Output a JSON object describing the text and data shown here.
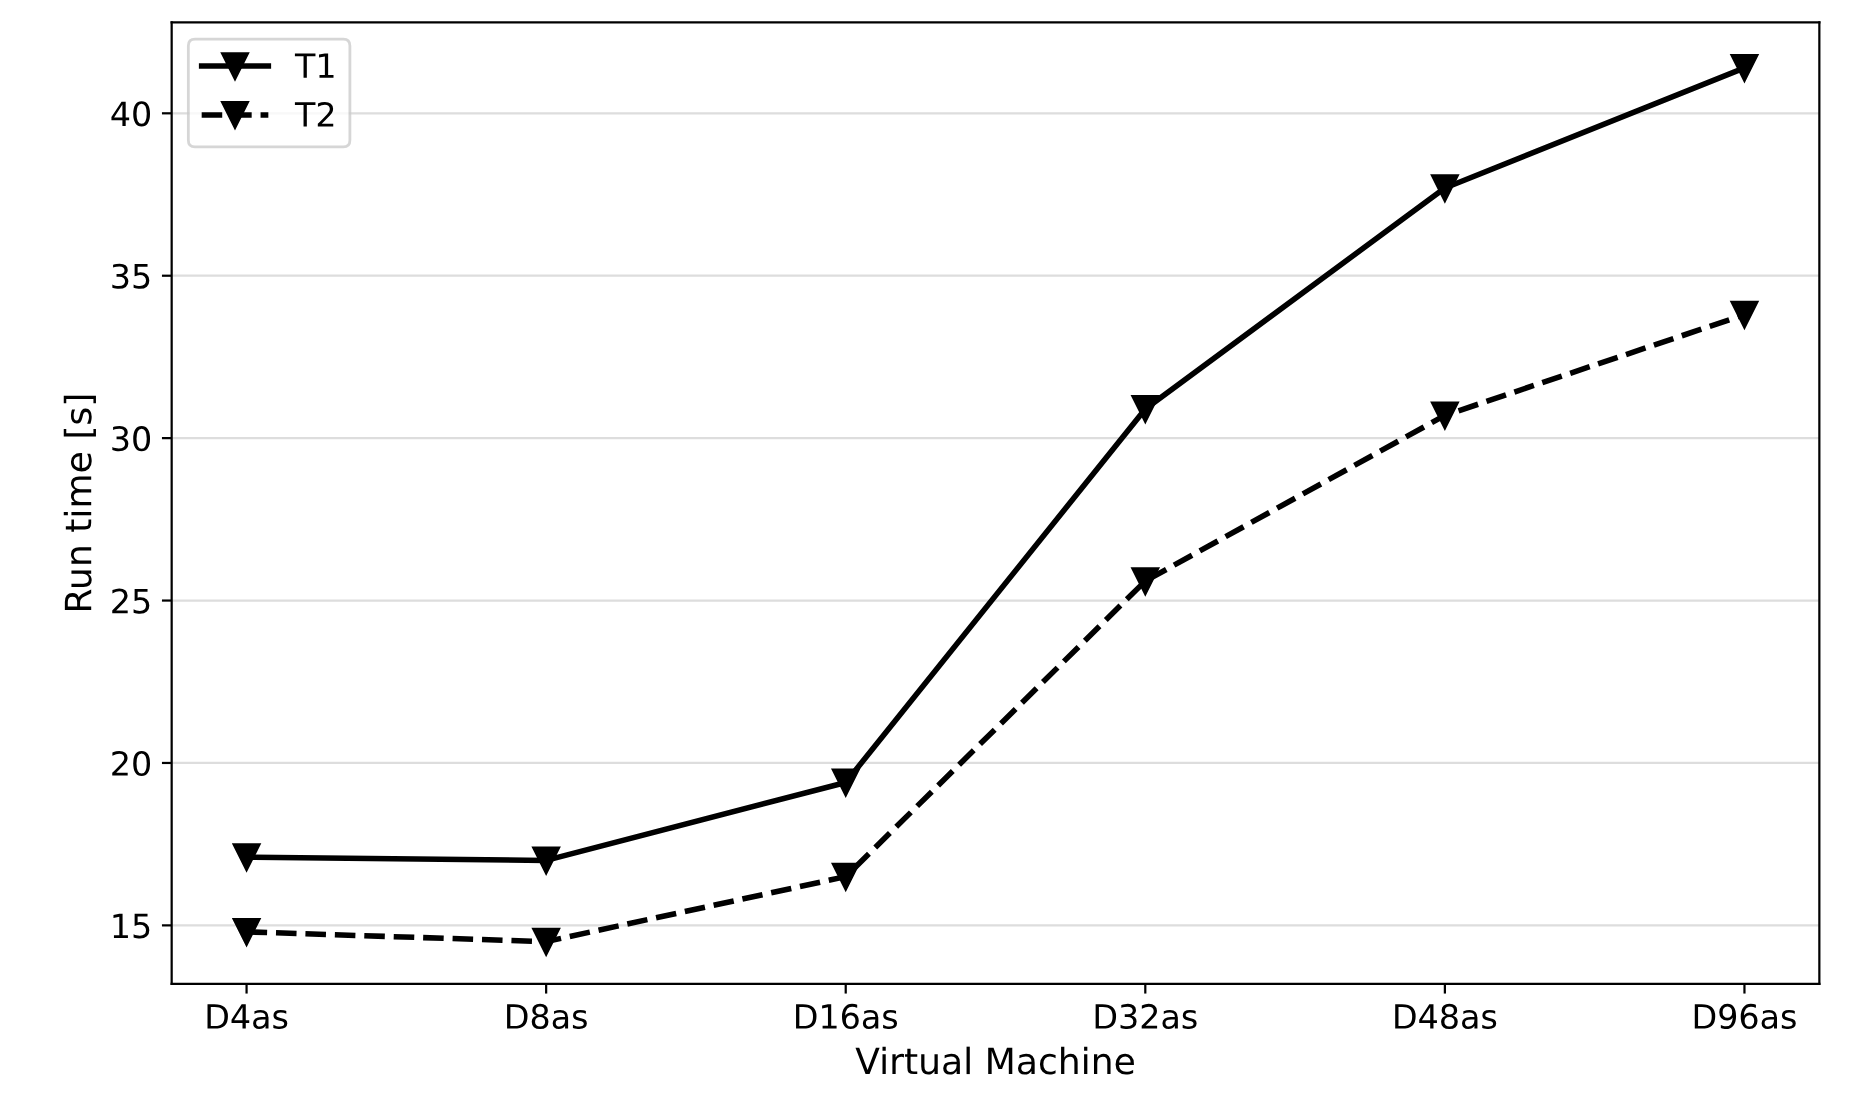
{
  "chart_data": {
    "type": "line",
    "xlabel": "Virtual Machine",
    "ylabel": "Run time [s]",
    "categories": [
      "D4as",
      "D8as",
      "D16as",
      "D32as",
      "D48as",
      "D96as"
    ],
    "series": [
      {
        "name": "T1",
        "color": "#000000",
        "line_style": "solid",
        "values": [
          17.1,
          17.0,
          19.4,
          30.9,
          37.7,
          41.4
        ]
      },
      {
        "name": "T2",
        "color": "#000000",
        "line_style": "dashed",
        "values": [
          14.8,
          14.5,
          16.5,
          25.6,
          30.7,
          33.8
        ]
      }
    ],
    "marker": "triangle",
    "ylim": [
      13.2,
      42.8
    ],
    "yticks": [
      15,
      20,
      25,
      30,
      35,
      40
    ],
    "grid": "y",
    "legend": "top left"
  }
}
